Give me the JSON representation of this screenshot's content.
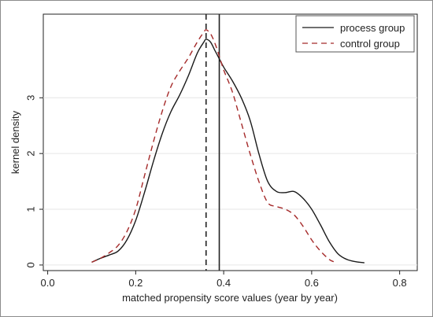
{
  "chart_data": {
    "type": "line",
    "title": "",
    "xlabel": "matched propensity score values (year by year)",
    "ylabel": "kernel density",
    "xlim": [
      -0.01,
      0.84
    ],
    "ylim": [
      -0.1,
      4.5
    ],
    "x_ticks": [
      "0.0",
      "0.2",
      "0.4",
      "0.6",
      "0.8"
    ],
    "x_tick_values": [
      0.0,
      0.2,
      0.4,
      0.6,
      0.8
    ],
    "y_ticks": [
      "0",
      "1",
      "2",
      "3"
    ],
    "y_tick_values": [
      0,
      1,
      2,
      3
    ],
    "grid": "horizontal",
    "legend_position": "top-right",
    "vlines": [
      {
        "x": 0.36,
        "style": "dashed",
        "color": "#222222"
      },
      {
        "x": 0.39,
        "style": "solid",
        "color": "#222222"
      }
    ],
    "series": [
      {
        "name": "process group",
        "color": "#1a1a1a",
        "dash": "solid",
        "points": [
          [
            0.1,
            0.05
          ],
          [
            0.12,
            0.12
          ],
          [
            0.14,
            0.18
          ],
          [
            0.16,
            0.25
          ],
          [
            0.18,
            0.45
          ],
          [
            0.2,
            0.8
          ],
          [
            0.22,
            1.3
          ],
          [
            0.24,
            1.85
          ],
          [
            0.26,
            2.35
          ],
          [
            0.28,
            2.75
          ],
          [
            0.3,
            3.05
          ],
          [
            0.32,
            3.4
          ],
          [
            0.34,
            3.8
          ],
          [
            0.355,
            4.0
          ],
          [
            0.36,
            4.05
          ],
          [
            0.37,
            4.0
          ],
          [
            0.38,
            3.85
          ],
          [
            0.39,
            3.7
          ],
          [
            0.4,
            3.55
          ],
          [
            0.42,
            3.3
          ],
          [
            0.44,
            3.0
          ],
          [
            0.46,
            2.6
          ],
          [
            0.48,
            2.0
          ],
          [
            0.5,
            1.5
          ],
          [
            0.52,
            1.32
          ],
          [
            0.54,
            1.3
          ],
          [
            0.56,
            1.32
          ],
          [
            0.58,
            1.2
          ],
          [
            0.6,
            1.0
          ],
          [
            0.62,
            0.72
          ],
          [
            0.64,
            0.42
          ],
          [
            0.66,
            0.2
          ],
          [
            0.68,
            0.1
          ],
          [
            0.7,
            0.06
          ],
          [
            0.72,
            0.04
          ]
        ]
      },
      {
        "name": "control group",
        "color": "#a52a2a",
        "dash": "dashed",
        "points": [
          [
            0.1,
            0.05
          ],
          [
            0.12,
            0.12
          ],
          [
            0.14,
            0.22
          ],
          [
            0.16,
            0.35
          ],
          [
            0.18,
            0.6
          ],
          [
            0.2,
            1.0
          ],
          [
            0.22,
            1.6
          ],
          [
            0.24,
            2.2
          ],
          [
            0.26,
            2.75
          ],
          [
            0.28,
            3.2
          ],
          [
            0.3,
            3.48
          ],
          [
            0.32,
            3.72
          ],
          [
            0.34,
            4.0
          ],
          [
            0.355,
            4.18
          ],
          [
            0.36,
            4.22
          ],
          [
            0.37,
            4.15
          ],
          [
            0.38,
            3.98
          ],
          [
            0.39,
            3.75
          ],
          [
            0.4,
            3.5
          ],
          [
            0.42,
            3.1
          ],
          [
            0.44,
            2.55
          ],
          [
            0.46,
            2.0
          ],
          [
            0.48,
            1.5
          ],
          [
            0.5,
            1.12
          ],
          [
            0.52,
            1.05
          ],
          [
            0.54,
            1.0
          ],
          [
            0.56,
            0.9
          ],
          [
            0.58,
            0.7
          ],
          [
            0.6,
            0.45
          ],
          [
            0.62,
            0.25
          ],
          [
            0.64,
            0.1
          ],
          [
            0.65,
            0.06
          ]
        ]
      }
    ]
  }
}
